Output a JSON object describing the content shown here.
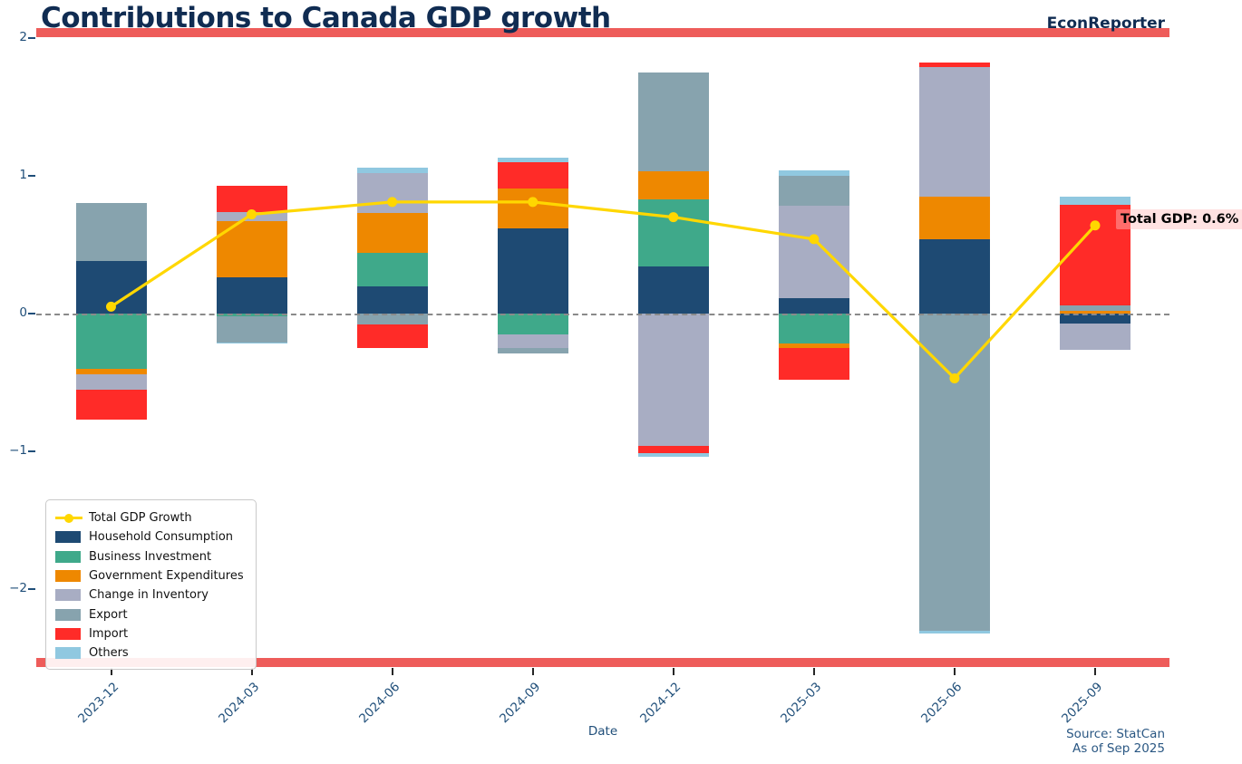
{
  "header": {
    "title": "Contributions to Canada GDP growth",
    "brand": "EconReporter"
  },
  "footer": {
    "source_line1": "Source: StatCan",
    "source_line2": "As of Sep 2025"
  },
  "colors": {
    "accent_bar": "#ee5c5a",
    "title_text": "#102c52",
    "axis_text": "#1f4e79",
    "source_text": "#2a5783",
    "zero_line": "#8a8a8a"
  },
  "chart_data": {
    "type": "bar",
    "subtype": "stacked-bars-with-line-overlay",
    "title": "Contributions to Canada GDP growth",
    "xlabel": "Date",
    "ylabel": "",
    "ylim": [
      -2.5,
      2.0
    ],
    "yticks": [
      2,
      1,
      0,
      -1,
      -2
    ],
    "grid": "zero-line-dashed-only",
    "legend_position": "lower-left",
    "annotation": "Total GDP: 0.6%",
    "categories": [
      "2023-12",
      "2024-03",
      "2024-06",
      "2024-09",
      "2024-12",
      "2025-03",
      "2025-06",
      "2025-09"
    ],
    "series": [
      {
        "name": "Household Consumption",
        "color": "#1e4a73",
        "values": [
          0.38,
          0.26,
          0.2,
          0.62,
          0.34,
          0.11,
          0.54,
          -0.07
        ]
      },
      {
        "name": "Business Investment",
        "color": "#3fa98a",
        "values": [
          -0.4,
          -0.02,
          0.24,
          -0.15,
          0.49,
          -0.22,
          0.0,
          0.0
        ]
      },
      {
        "name": "Government Expenditures",
        "color": "#ee8800",
        "values": [
          -0.04,
          0.41,
          0.29,
          0.29,
          0.2,
          -0.03,
          0.31,
          0.02
        ]
      },
      {
        "name": "Change in Inventory",
        "color": "#a8adc3",
        "values": [
          -0.11,
          0.07,
          0.29,
          -0.1,
          -0.96,
          0.67,
          0.94,
          -0.19
        ]
      },
      {
        "name": "Export",
        "color": "#87a3ae",
        "values": [
          0.42,
          -0.19,
          -0.08,
          -0.04,
          0.72,
          0.22,
          -2.3,
          0.04
        ]
      },
      {
        "name": "Import",
        "color": "#ff2b28",
        "values": [
          -0.22,
          0.19,
          -0.17,
          0.19,
          -0.05,
          -0.23,
          0.03,
          0.73
        ]
      },
      {
        "name": "Others",
        "color": "#90c8e0",
        "values": [
          0.0,
          -0.01,
          0.04,
          0.03,
          -0.03,
          0.04,
          -0.02,
          0.06
        ]
      }
    ],
    "line": {
      "name": "Total GDP Growth",
      "color": "#ffd700",
      "values": [
        0.05,
        0.72,
        0.81,
        0.81,
        0.7,
        0.54,
        -0.47,
        0.64
      ]
    }
  }
}
